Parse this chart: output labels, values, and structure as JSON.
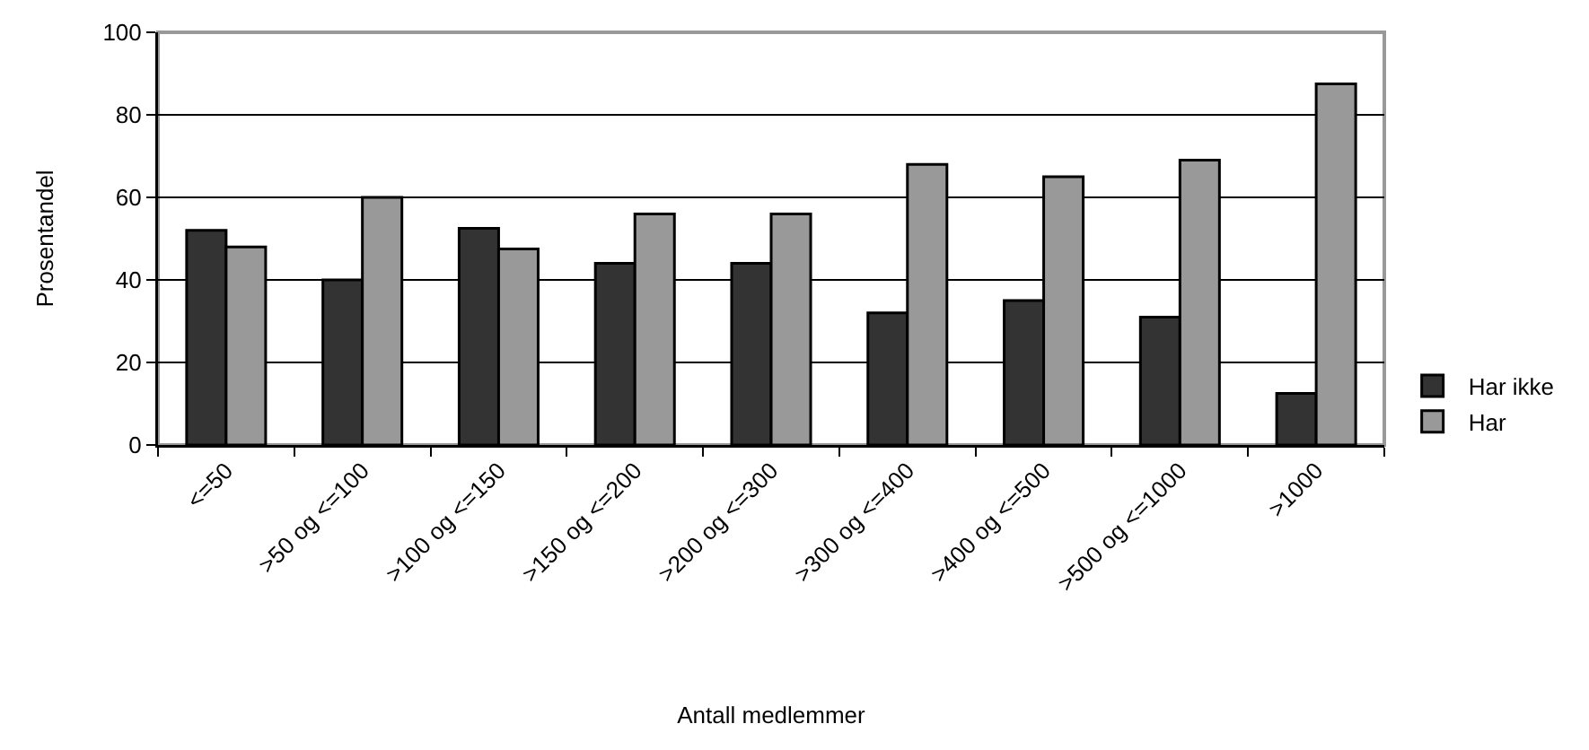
{
  "chart_data": {
    "type": "bar",
    "xlabel": "Antall medlemmer",
    "ylabel": "Prosentandel",
    "categories": [
      "<=50",
      ">50 og <=100",
      ">100 og <=150",
      ">150 og <=200",
      ">200 og <=300",
      ">300 og <=400",
      ">400 og <=500",
      ">500 og <=1000",
      ">1000"
    ],
    "series": [
      {
        "name": "Har ikke",
        "color": "#333333",
        "values": [
          52,
          40,
          52.5,
          44,
          44,
          32,
          35,
          31,
          12.5
        ]
      },
      {
        "name": "Har",
        "color": "#999999",
        "values": [
          48,
          60,
          47.5,
          56,
          56,
          68,
          65,
          69,
          87.5
        ]
      }
    ],
    "ylim": [
      0,
      100
    ],
    "yticks": [
      0,
      20,
      40,
      60,
      80,
      100
    ],
    "grid": "y",
    "legend": "right"
  }
}
